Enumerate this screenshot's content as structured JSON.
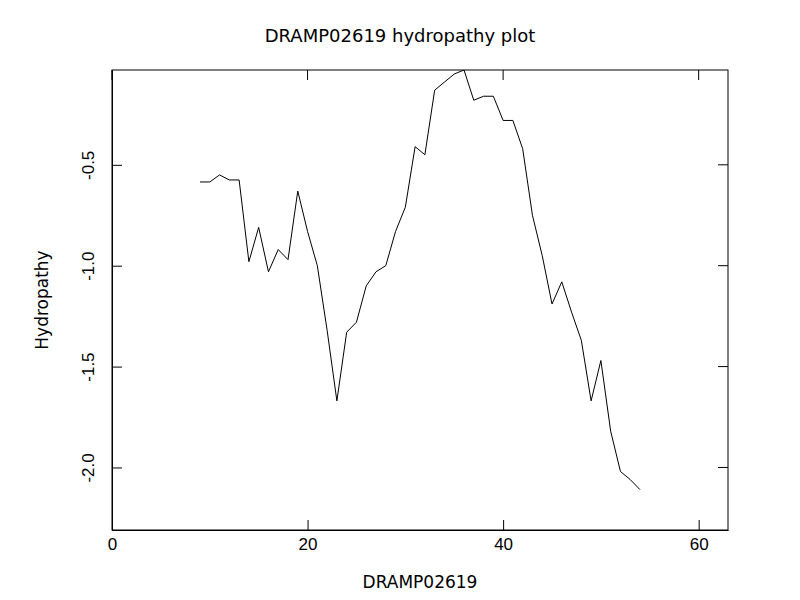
{
  "chart_data": {
    "type": "line",
    "title": "DRAMP02619 hydropathy plot",
    "x_label": "DRAMP02619",
    "y_label": "Hydropathy",
    "color": "#000000",
    "x": [
      9,
      10,
      11,
      12,
      13,
      14,
      15,
      16,
      17,
      18,
      19,
      20,
      21,
      22,
      23,
      24,
      25,
      26,
      27,
      28,
      29,
      30,
      31,
      32,
      33,
      34,
      35,
      36,
      37,
      38,
      39,
      40,
      41,
      42,
      43,
      44,
      45,
      46,
      47,
      48,
      49,
      50,
      51,
      52,
      53,
      54
    ],
    "values": [
      -0.585,
      -0.585,
      -0.55,
      -0.575,
      -0.575,
      -0.98,
      -0.81,
      -1.03,
      -0.92,
      -0.97,
      -0.63,
      -0.83,
      -1.0,
      -1.32,
      -1.67,
      -1.33,
      -1.28,
      -1.1,
      -1.03,
      -1.0,
      -0.83,
      -0.71,
      -0.41,
      -0.45,
      -0.13,
      -0.09,
      -0.05,
      -0.03,
      -0.18,
      -0.16,
      -0.16,
      -0.28,
      -0.28,
      -0.42,
      -0.75,
      -0.95,
      -1.19,
      -1.08,
      -1.23,
      -1.37,
      -1.67,
      -1.47,
      -1.82,
      -2.02,
      -2.06,
      -2.11
    ],
    "xlim": [
      0,
      63
    ],
    "ylim": [
      -2.31,
      -0.03
    ],
    "xticks": [
      0,
      20,
      40,
      60
    ],
    "yticks": [
      {
        "value": -2.0,
        "label": "-2.0"
      },
      {
        "value": -1.5,
        "label": "-1.5"
      },
      {
        "value": -1.0,
        "label": "-1.0"
      },
      {
        "value": -0.5,
        "label": "-0.5"
      }
    ]
  }
}
